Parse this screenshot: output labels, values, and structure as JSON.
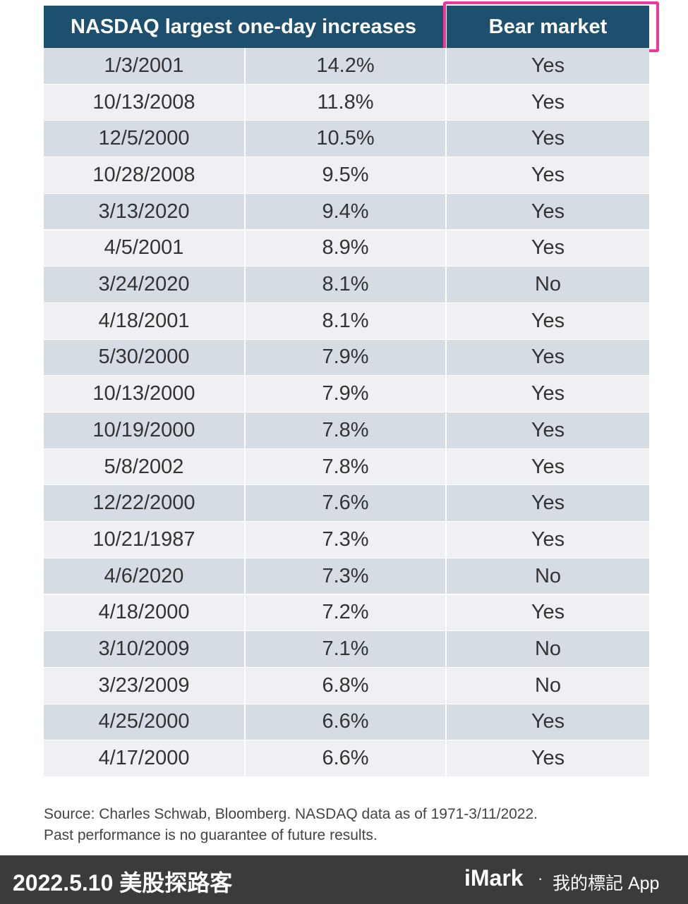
{
  "table": {
    "header": [
      "NASDAQ largest one-day increases",
      "Bear market"
    ],
    "rows": [
      [
        "1/3/2001",
        "14.2%",
        "Yes"
      ],
      [
        "10/13/2008",
        "11.8%",
        "Yes"
      ],
      [
        "12/5/2000",
        "10.5%",
        "Yes"
      ],
      [
        "10/28/2008",
        "9.5%",
        "Yes"
      ],
      [
        "3/13/2020",
        "9.4%",
        "Yes"
      ],
      [
        "4/5/2001",
        "8.9%",
        "Yes"
      ],
      [
        "3/24/2020",
        "8.1%",
        "No"
      ],
      [
        "4/18/2001",
        "8.1%",
        "Yes"
      ],
      [
        "5/30/2000",
        "7.9%",
        "Yes"
      ],
      [
        "10/13/2000",
        "7.9%",
        "Yes"
      ],
      [
        "10/19/2000",
        "7.8%",
        "Yes"
      ],
      [
        "5/8/2002",
        "7.8%",
        "Yes"
      ],
      [
        "12/22/2000",
        "7.6%",
        "Yes"
      ],
      [
        "10/21/1987",
        "7.3%",
        "Yes"
      ],
      [
        "4/6/2020",
        "7.3%",
        "No"
      ],
      [
        "4/18/2000",
        "7.2%",
        "Yes"
      ],
      [
        "3/10/2009",
        "7.1%",
        "No"
      ],
      [
        "3/23/2009",
        "6.8%",
        "No"
      ],
      [
        "4/25/2000",
        "6.6%",
        "Yes"
      ],
      [
        "4/17/2000",
        "6.6%",
        "Yes"
      ]
    ]
  },
  "source": {
    "lines": [
      "Source: Charles Schwab, Bloomberg. NASDAQ data as of 1971-3/11/2022.",
      "Past performance is no guarantee of future results."
    ]
  },
  "footer": {
    "left": "2022.5.10 美股探路客",
    "brand": "iMark",
    "dot": "·",
    "right": "我的標記 App"
  }
}
